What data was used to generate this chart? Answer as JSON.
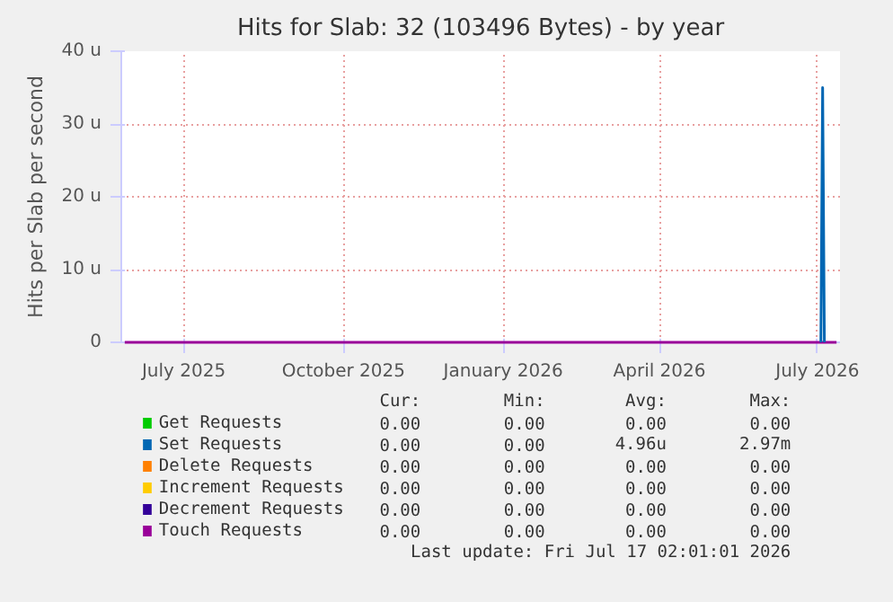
{
  "chart_data": {
    "type": "line",
    "title": "Hits for Slab: 32 (103496 Bytes) - by year",
    "ylabel": "Hits per Slab per second",
    "x": [
      "2025-05-28",
      "2026-07-12"
    ],
    "series": [
      {
        "name": "Get Requests",
        "color": "#00cc00",
        "values": [
          null,
          null
        ]
      },
      {
        "name": "Set Requests",
        "color": "#0066b3",
        "x": [
          "2026-07-03",
          "2026-07-04",
          "2026-07-05"
        ],
        "values": [
          0,
          35,
          0
        ]
      },
      {
        "name": "Delete Requests",
        "color": "#ff8000",
        "values": [
          null,
          null
        ]
      },
      {
        "name": "Increment Requests",
        "color": "#ffcc00",
        "values": [
          null,
          null
        ]
      },
      {
        "name": "Decrement Requests",
        "color": "#330099",
        "values": [
          null,
          null
        ]
      },
      {
        "name": "Touch Requests",
        "color": "#990099",
        "values": [
          0,
          0
        ]
      }
    ],
    "xlim": [
      "2025-05-26",
      "2026-07-14"
    ],
    "xticks": [
      {
        "value": "2025-07-01",
        "label": "July 2025"
      },
      {
        "value": "2025-10-01",
        "label": "October 2025"
      },
      {
        "value": "2026-01-01",
        "label": "January 2026"
      },
      {
        "value": "2026-04-01",
        "label": "April 2026"
      },
      {
        "value": "2026-07-01",
        "label": "July 2026"
      }
    ],
    "ylim": [
      0,
      40
    ],
    "yticks": [
      0,
      {
        "value": 10,
        "label": "10 u"
      },
      {
        "value": 20,
        "label": "20 u"
      },
      {
        "value": 30,
        "label": "30 u"
      },
      {
        "value": 40,
        "label": "40 u"
      }
    ],
    "grid": true,
    "legend": "bottom",
    "line_style": "solid",
    "marker": "none",
    "annotations": [
      "Cur:",
      "Min:",
      "Avg:",
      "Max:",
      "0.00",
      "0.00",
      "0.00",
      "0.00",
      "0.00",
      "0.00",
      "4.96u",
      "2.97m",
      "0.00",
      "0.00",
      "0.00",
      "0.00",
      "0.00",
      "0.00",
      "0.00",
      "0.00",
      "0.00",
      "0.00",
      "0.00",
      "0.00",
      "0.00",
      "0.00",
      "0.00",
      "0.00",
      "Last update: Fri Jul 17 02:01:01 2026"
    ]
  }
}
